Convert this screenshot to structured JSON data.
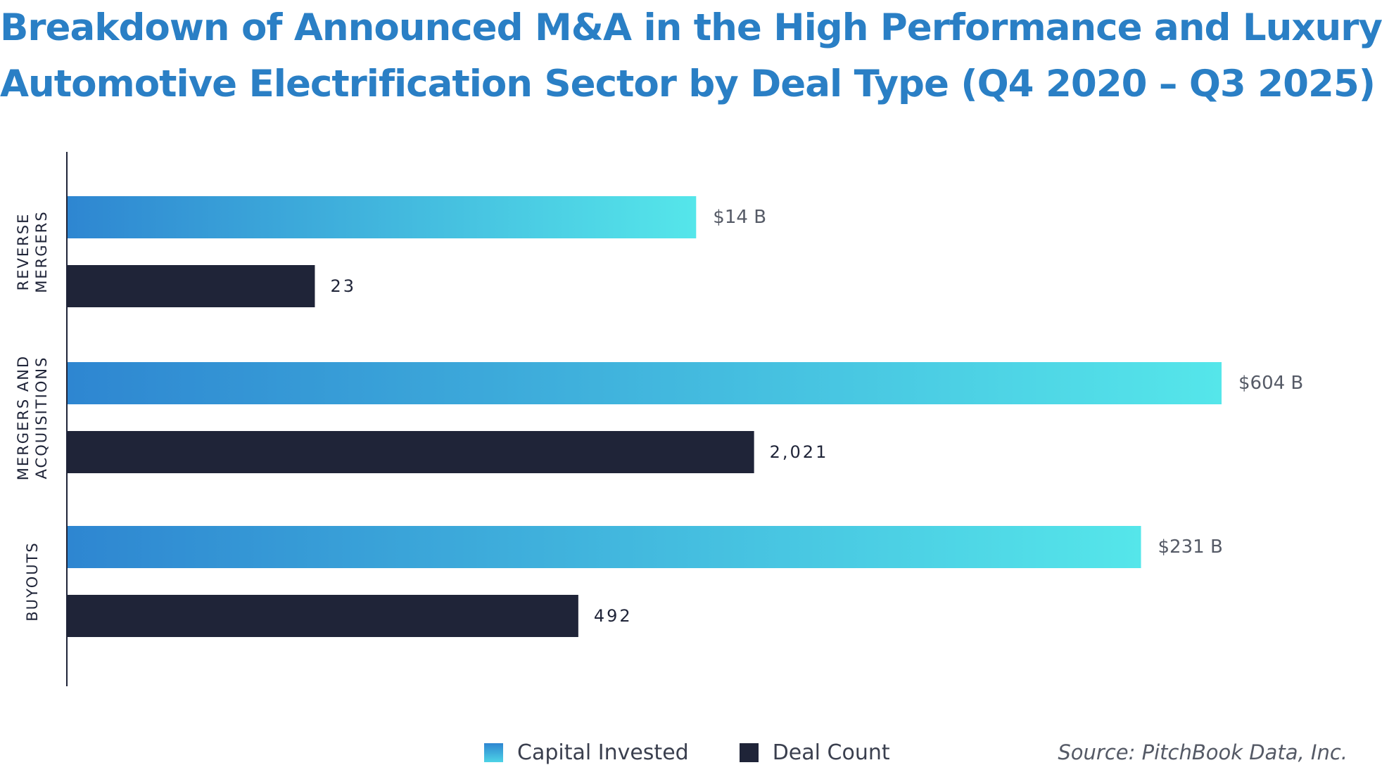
{
  "chart_data": {
    "type": "bar",
    "orientation": "horizontal",
    "title_lines": [
      "Breakdown of Announced M&A in the High Performance and Luxury",
      "Automotive Electrification Sector by Deal Type (Q4 2020 – Q3 2025)"
    ],
    "categories": [
      {
        "line1": "REVERSE",
        "line2": "MERGERS"
      },
      {
        "line1": "MERGERS AND",
        "line2": "ACQUISITIONS"
      },
      {
        "line1": "BUYOUTS",
        "line2": ""
      }
    ],
    "series": [
      {
        "name": "Capital Invested",
        "values": [
          14,
          604,
          231
        ],
        "bar_fraction": [
          0.5447,
          1.0,
          0.9302
        ],
        "labels": [
          "$14 B",
          "$604 B",
          "$231 B"
        ],
        "color_start": "#2e86d1",
        "color_end": "#55e6ea"
      },
      {
        "name": "Deal Count",
        "values": [
          23,
          2021,
          492
        ],
        "bar_fraction": [
          0.2143,
          0.5949,
          0.4426
        ],
        "labels": [
          "23",
          "2,021",
          "492"
        ],
        "color": "#1f2438"
      }
    ],
    "grid": false,
    "legend_position": "bottom"
  },
  "source": "Source: PitchBook Data, Inc."
}
